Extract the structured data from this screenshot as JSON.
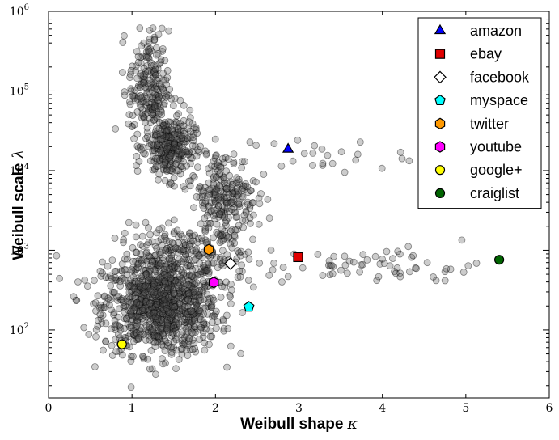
{
  "chart_data": {
    "type": "scatter",
    "xlabel": {
      "text": "Weibull shape",
      "symbol": "κ"
    },
    "ylabel": {
      "text": "Weibull scale",
      "symbol": "λ"
    },
    "xlim": [
      0,
      6
    ],
    "ylim": [
      14,
      1000000
    ],
    "yscale": "log",
    "x_ticks": [
      0,
      1,
      2,
      3,
      4,
      5,
      6
    ],
    "y_ticks": [
      {
        "value": 100,
        "base": "10",
        "exp": "2"
      },
      {
        "value": 1000,
        "base": "10",
        "exp": "3"
      },
      {
        "value": 10000,
        "base": "10",
        "exp": "4"
      },
      {
        "value": 100000,
        "base": "10",
        "exp": "5"
      },
      {
        "value": 1000000,
        "base": "10",
        "exp": "6"
      }
    ],
    "grid": false,
    "legend_position": "top-right",
    "background_points": {
      "color": "#555555",
      "clusters": [
        {
          "count": 1000,
          "x_center": 1.35,
          "x_spread": 0.35,
          "y_log_center": 2.3,
          "y_log_spread": 0.3
        },
        {
          "count": 220,
          "x_center": 1.6,
          "x_spread": 0.4,
          "y_log_center": 2.9,
          "y_log_spread": 0.2
        },
        {
          "count": 300,
          "x_center": 1.45,
          "x_spread": 0.15,
          "y_log_center": 4.3,
          "y_log_spread": 0.2
        },
        {
          "count": 220,
          "x_center": 1.2,
          "x_spread": 0.12,
          "y_log_center": 5.05,
          "y_log_spread": 0.35
        },
        {
          "count": 260,
          "x_center": 2.1,
          "x_spread": 0.2,
          "y_log_center": 3.65,
          "y_log_spread": 0.3
        },
        {
          "count": 60,
          "x_center": 4.0,
          "x_spread": 0.6,
          "y_log_center": 2.8,
          "y_log_spread": 0.12
        },
        {
          "count": 25,
          "x_center": 3.3,
          "x_spread": 0.5,
          "y_log_center": 4.2,
          "y_log_spread": 0.12
        }
      ]
    },
    "series": [
      {
        "name": "amazon",
        "marker": "triangle",
        "color": "#0000ff",
        "x": 2.87,
        "y": 18500
      },
      {
        "name": "ebay",
        "marker": "square",
        "color": "#e00000",
        "x": 2.99,
        "y": 820
      },
      {
        "name": "facebook",
        "marker": "diamond",
        "color": "#ffffff",
        "x": 2.18,
        "y": 680
      },
      {
        "name": "myspace",
        "marker": "pentagon",
        "color": "#00ffff",
        "x": 2.4,
        "y": 195
      },
      {
        "name": "twitter",
        "marker": "hexagon",
        "color": "#ff9900",
        "x": 1.92,
        "y": 1020
      },
      {
        "name": "youtube",
        "marker": "hexagon",
        "color": "#ff00ff",
        "x": 1.98,
        "y": 395
      },
      {
        "name": "google+",
        "marker": "circle",
        "color": "#ffff00",
        "x": 0.88,
        "y": 66
      },
      {
        "name": "craiglist",
        "marker": "circle",
        "color": "#006400",
        "x": 5.4,
        "y": 760
      }
    ]
  }
}
